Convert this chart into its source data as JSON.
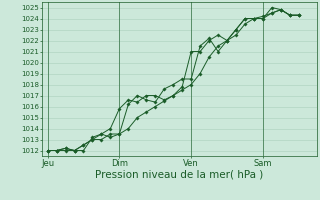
{
  "title": "Pression niveau de la mer( hPa )",
  "bg_color": "#cce8da",
  "grid_color_major": "#aacfbc",
  "grid_color_minor": "#bddcca",
  "line_color": "#1a5c28",
  "ylim_min": 1011.5,
  "ylim_max": 1025.5,
  "yticks": [
    1012,
    1013,
    1014,
    1015,
    1016,
    1017,
    1018,
    1019,
    1020,
    1021,
    1022,
    1023,
    1024,
    1025
  ],
  "xtick_labels": [
    "Jeu",
    "Dim",
    "Ven",
    "Sam"
  ],
  "xtick_positions": [
    0,
    24,
    48,
    72
  ],
  "xlim_min": -2,
  "xlim_max": 90,
  "vline_positions": [
    0,
    24,
    48,
    72
  ],
  "series1_x": [
    0,
    3,
    6,
    9,
    12,
    15,
    18,
    21,
    24,
    27,
    30,
    33,
    36,
    39,
    42,
    45,
    48,
    51,
    54,
    57,
    60,
    63,
    66,
    69,
    72,
    75,
    78,
    81,
    84
  ],
  "series1_y": [
    1012.0,
    1012.0,
    1012.2,
    1012.0,
    1012.5,
    1013.0,
    1013.5,
    1014.0,
    1015.8,
    1016.6,
    1016.4,
    1017.0,
    1017.0,
    1016.6,
    1017.0,
    1017.8,
    1021.0,
    1021.0,
    1022.0,
    1022.5,
    1022.0,
    1023.0,
    1024.0,
    1024.0,
    1024.0,
    1025.0,
    1024.8,
    1024.3,
    1024.3
  ],
  "series2_x": [
    0,
    3,
    6,
    9,
    12,
    15,
    18,
    21,
    24,
    27,
    30,
    33,
    36,
    39,
    42,
    45,
    48,
    51,
    54,
    57,
    60,
    63,
    66,
    69,
    72,
    75,
    78,
    81,
    84
  ],
  "series2_y": [
    1012.0,
    1012.0,
    1012.2,
    1012.0,
    1012.0,
    1013.2,
    1013.5,
    1013.2,
    1013.5,
    1016.2,
    1017.0,
    1016.6,
    1016.4,
    1017.6,
    1018.0,
    1018.5,
    1018.5,
    1021.5,
    1022.2,
    1021.0,
    1022.0,
    1023.0,
    1024.0,
    1024.0,
    1024.0,
    1024.5,
    1024.8,
    1024.3,
    1024.3
  ],
  "series3_x": [
    0,
    3,
    6,
    9,
    12,
    15,
    18,
    21,
    24,
    27,
    30,
    33,
    36,
    39,
    42,
    45,
    48,
    51,
    54,
    57,
    60,
    63,
    66,
    69,
    72,
    75,
    78,
    81,
    84
  ],
  "series3_y": [
    1012.0,
    1012.0,
    1012.0,
    1012.0,
    1012.5,
    1013.0,
    1013.0,
    1013.5,
    1013.5,
    1014.0,
    1015.0,
    1015.5,
    1016.0,
    1016.5,
    1017.0,
    1017.5,
    1018.0,
    1019.0,
    1020.5,
    1021.5,
    1022.0,
    1022.5,
    1023.5,
    1024.0,
    1024.2,
    1024.5,
    1024.8,
    1024.3,
    1024.3
  ],
  "font_size_yticks": 5.0,
  "font_size_xticks": 6.0,
  "font_size_xlabel": 7.5,
  "marker_size": 1.8,
  "line_width": 0.7
}
